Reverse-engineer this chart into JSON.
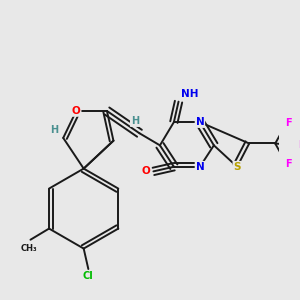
{
  "bg_color": "#e8e8e8",
  "bond_color": "#1a1a1a",
  "atom_colors": {
    "O": "#ff0000",
    "N": "#0000ee",
    "S": "#b8a000",
    "F": "#ff00ff",
    "Cl": "#00bb00",
    "H": "#4a9090",
    "C": "#1a1a1a"
  }
}
